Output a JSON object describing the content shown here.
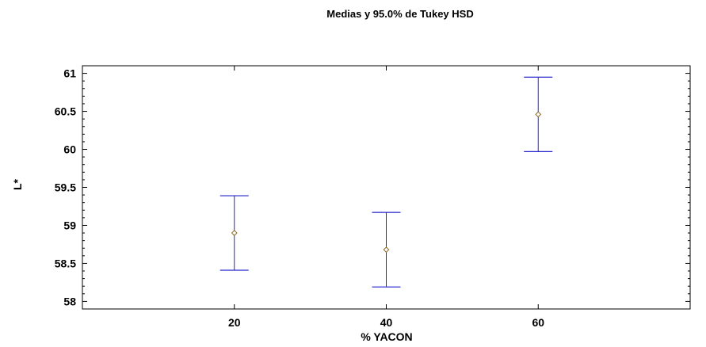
{
  "chart_data": {
    "type": "scatter",
    "title": "Medias y 95.0% de Tukey HSD",
    "xlabel": "% YACON",
    "ylabel": "L*",
    "ylim": [
      57.9,
      61.1
    ],
    "yticks": [
      "58",
      "58.5",
      "59",
      "59.5",
      "60",
      "60.5",
      "61"
    ],
    "categories": [
      "20",
      "40",
      "60"
    ],
    "series": [
      {
        "means": [
          58.9,
          58.68,
          60.46
        ],
        "lower": [
          58.41,
          58.19,
          59.97
        ],
        "upper": [
          59.39,
          59.17,
          60.95
        ]
      }
    ],
    "grid": false,
    "colors": {
      "interval": "#2222cc",
      "mean_marker": "#8b6a2a",
      "axes": "#000000"
    }
  }
}
